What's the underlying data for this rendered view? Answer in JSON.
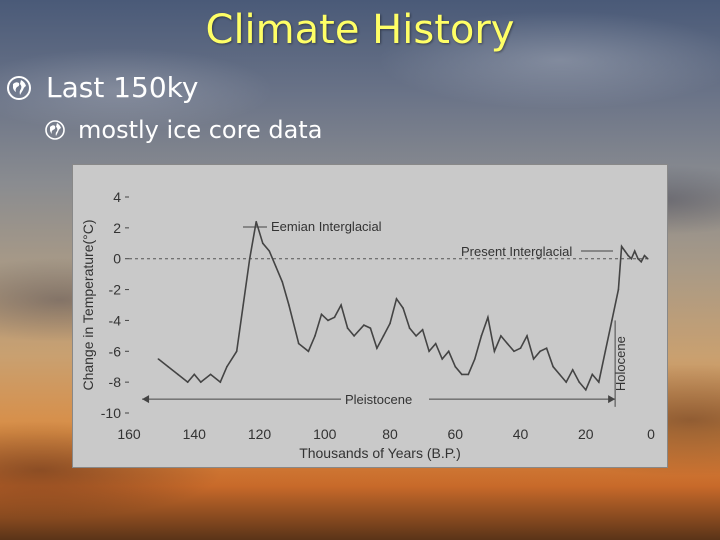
{
  "slide": {
    "title": "Climate History",
    "bullet1": "Last 150ky",
    "bullet2": "mostly ice core data",
    "bullet1_icon": "globe-icon",
    "bullet2_icon": "globe-small-icon",
    "title_color": "#ffff66"
  },
  "chart_data": {
    "type": "line",
    "xlabel": "Thousands of Years (B.P.)",
    "ylabel": "Change in Temperature(°C)",
    "xlim": [
      160,
      0
    ],
    "ylim": [
      -10,
      4
    ],
    "x_ticks": [
      160,
      140,
      120,
      100,
      80,
      60,
      40,
      20,
      0
    ],
    "y_ticks": [
      4,
      2,
      0,
      -2,
      -4,
      -6,
      -8,
      -10
    ],
    "zero_line": "dashed",
    "annotations": {
      "eemian": "Eemian Interglacial",
      "present": "Present Interglacial",
      "pleistocene": "Pleistocene",
      "holocene": "Holocene"
    },
    "series": [
      {
        "values": [
          [
            151,
            -6.5
          ],
          [
            148,
            -7
          ],
          [
            145,
            -7.5
          ],
          [
            142,
            -8
          ],
          [
            140,
            -7.5
          ],
          [
            138,
            -8
          ],
          [
            135,
            -7.5
          ],
          [
            132,
            -8
          ],
          [
            130,
            -7
          ],
          [
            127,
            -6
          ],
          [
            125,
            -3
          ],
          [
            123,
            0
          ],
          [
            121,
            2.4
          ],
          [
            119,
            1
          ],
          [
            117,
            0.5
          ],
          [
            115,
            -0.5
          ],
          [
            113,
            -1.5
          ],
          [
            111,
            -3
          ],
          [
            108,
            -5.5
          ],
          [
            105,
            -6
          ],
          [
            103,
            -5
          ],
          [
            101,
            -3.6
          ],
          [
            99,
            -4
          ],
          [
            97,
            -3.8
          ],
          [
            95,
            -3
          ],
          [
            93,
            -4.5
          ],
          [
            91,
            -5
          ],
          [
            88,
            -4.3
          ],
          [
            86,
            -4.5
          ],
          [
            84,
            -5.8
          ],
          [
            82,
            -5
          ],
          [
            80,
            -4.2
          ],
          [
            78,
            -2.6
          ],
          [
            76,
            -3.2
          ],
          [
            74,
            -4.5
          ],
          [
            72,
            -5
          ],
          [
            70,
            -4.6
          ],
          [
            68,
            -6
          ],
          [
            66,
            -5.5
          ],
          [
            64,
            -6.5
          ],
          [
            62,
            -6
          ],
          [
            60,
            -7
          ],
          [
            58,
            -7.5
          ],
          [
            56,
            -7.5
          ],
          [
            54,
            -6.5
          ],
          [
            52,
            -5
          ],
          [
            50,
            -3.8
          ],
          [
            48,
            -6
          ],
          [
            46,
            -5
          ],
          [
            44,
            -5.5
          ],
          [
            42,
            -6
          ],
          [
            40,
            -5.8
          ],
          [
            38,
            -5
          ],
          [
            36,
            -6.5
          ],
          [
            34,
            -6
          ],
          [
            32,
            -5.8
          ],
          [
            30,
            -7
          ],
          [
            28,
            -7.5
          ],
          [
            26,
            -8
          ],
          [
            24,
            -7.2
          ],
          [
            22,
            -8
          ],
          [
            20,
            -8.5
          ],
          [
            18,
            -7.5
          ],
          [
            16,
            -8
          ],
          [
            14,
            -6
          ],
          [
            12,
            -4
          ],
          [
            10,
            -2
          ],
          [
            9,
            0.8
          ],
          [
            8,
            0.5
          ],
          [
            7,
            0.2
          ],
          [
            6,
            0
          ],
          [
            5,
            0.5
          ],
          [
            4,
            0
          ],
          [
            3,
            -0.2
          ],
          [
            2,
            0.2
          ],
          [
            1,
            0
          ]
        ]
      }
    ]
  }
}
